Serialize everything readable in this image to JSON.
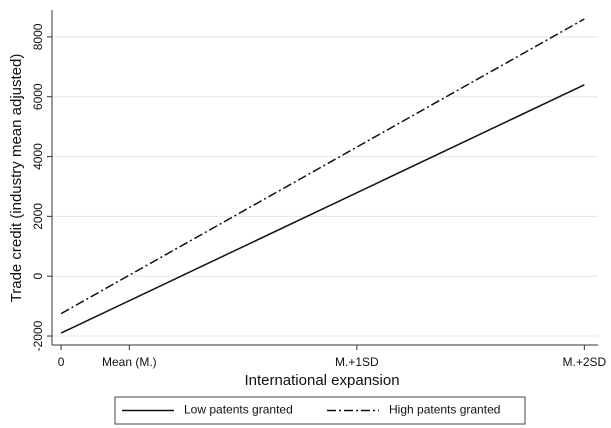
{
  "chart_data": {
    "type": "line",
    "x_label": "International expansion",
    "y_label": "Trade credit (industry mean adjusted)",
    "x": [
      0,
      2.3
    ],
    "xlim": [
      -0.04,
      2.36
    ],
    "xticks": [
      {
        "value": 0,
        "label": "0"
      },
      {
        "value": 0.3,
        "label": "Mean (M.)"
      },
      {
        "value": 1.3,
        "label": "M.+1SD"
      },
      {
        "value": 2.3,
        "label": "M.+2SD"
      }
    ],
    "ylim": [
      -2300,
      8900
    ],
    "yticks": [
      -2000,
      0,
      2000,
      4000,
      6000,
      8000
    ],
    "grid": true,
    "legend": "bottom",
    "series": [
      {
        "name": "Low patents granted",
        "color": "#111111",
        "style": "solid",
        "values": [
          -1900,
          6400
        ]
      },
      {
        "name": "High patents granted",
        "color": "#111111",
        "style": "dashdot",
        "values": [
          -1250,
          8600
        ]
      }
    ]
  }
}
